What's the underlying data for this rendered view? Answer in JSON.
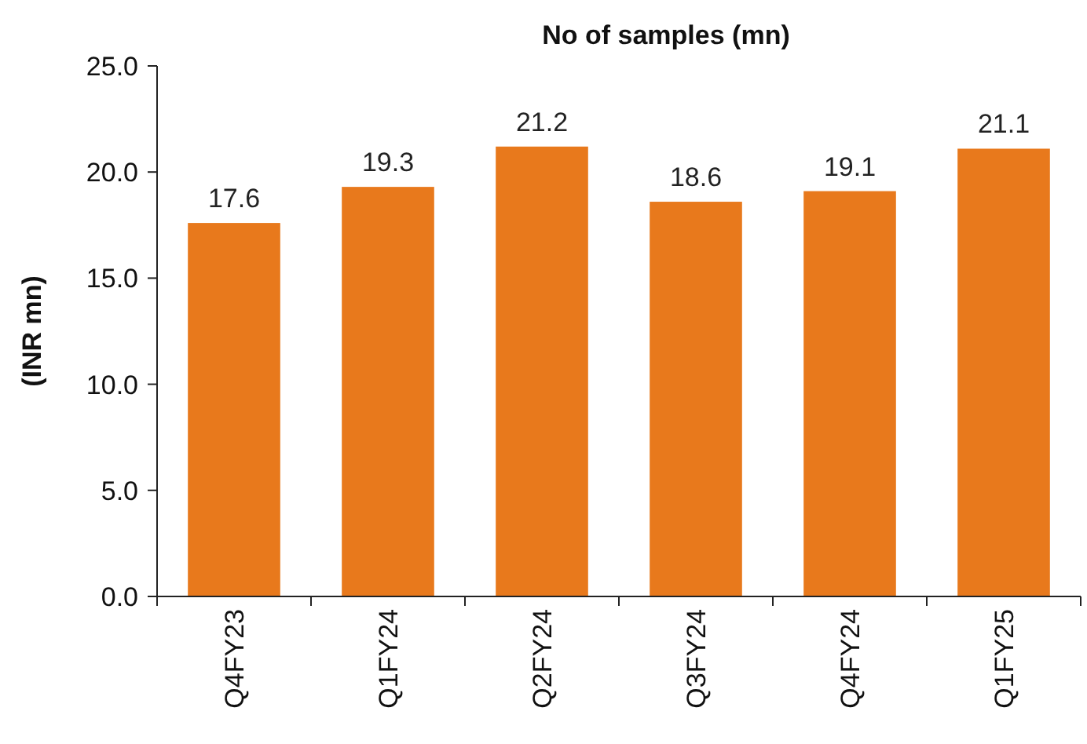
{
  "chart_data": {
    "type": "bar",
    "title": "No of samples (mn)",
    "ylabel": "(INR mn)",
    "categories": [
      "Q4FY23",
      "Q1FY24",
      "Q2FY24",
      "Q3FY24",
      "Q4FY24",
      "Q1FY25"
    ],
    "values": [
      17.6,
      19.3,
      21.2,
      18.6,
      19.1,
      21.1
    ],
    "color": "#e8791c",
    "ylim": [
      0,
      25
    ],
    "yticks": [
      {
        "value": 0,
        "label": "0.0"
      },
      {
        "value": 5,
        "label": "5.0"
      },
      {
        "value": 10,
        "label": "10.0"
      },
      {
        "value": 15,
        "label": "15.0"
      },
      {
        "value": 20,
        "label": "20.0"
      },
      {
        "value": 25,
        "label": "25.0"
      }
    ],
    "data_labels": true,
    "grid": false
  }
}
